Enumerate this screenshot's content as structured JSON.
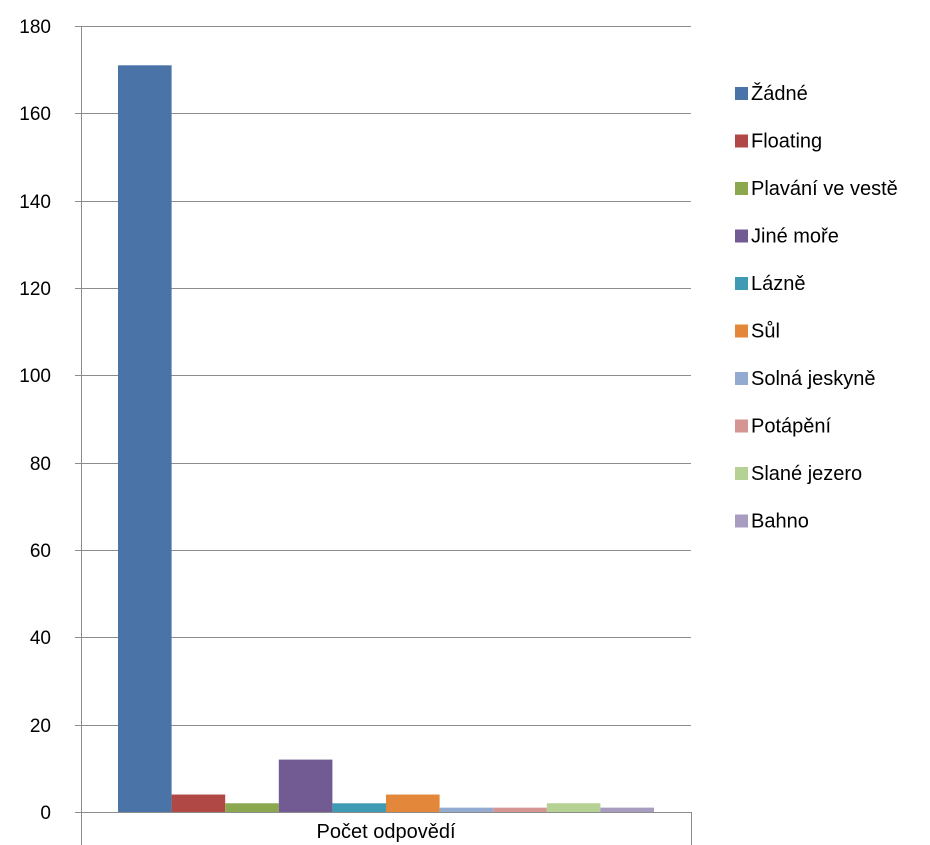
{
  "chart_data": {
    "type": "bar",
    "categories": [
      "Počet odpovědí"
    ],
    "series": [
      {
        "name": "Žádné",
        "values": [
          171
        ],
        "color": "#4A74A8"
      },
      {
        "name": "Floating",
        "values": [
          4
        ],
        "color": "#B04845"
      },
      {
        "name": "Plavání ve vestě",
        "values": [
          2
        ],
        "color": "#8BA84E"
      },
      {
        "name": "Jiné moře",
        "values": [
          12
        ],
        "color": "#725A92"
      },
      {
        "name": "Lázně",
        "values": [
          2
        ],
        "color": "#3E9BB3"
      },
      {
        "name": "Sůl",
        "values": [
          4
        ],
        "color": "#E3873A"
      },
      {
        "name": "Solná jeskyně",
        "values": [
          1
        ],
        "color": "#93AAD1"
      },
      {
        "name": "Potápění",
        "values": [
          1
        ],
        "color": "#D49593"
      },
      {
        "name": "Slané jezero",
        "values": [
          2
        ],
        "color": "#B6D194"
      },
      {
        "name": "Bahno",
        "values": [
          1
        ],
        "color": "#A99CC1"
      }
    ],
    "ylim": [
      0,
      180
    ],
    "yticks": [
      0,
      20,
      40,
      60,
      80,
      100,
      120,
      140,
      160,
      180
    ],
    "grid": true,
    "legend": "right"
  }
}
